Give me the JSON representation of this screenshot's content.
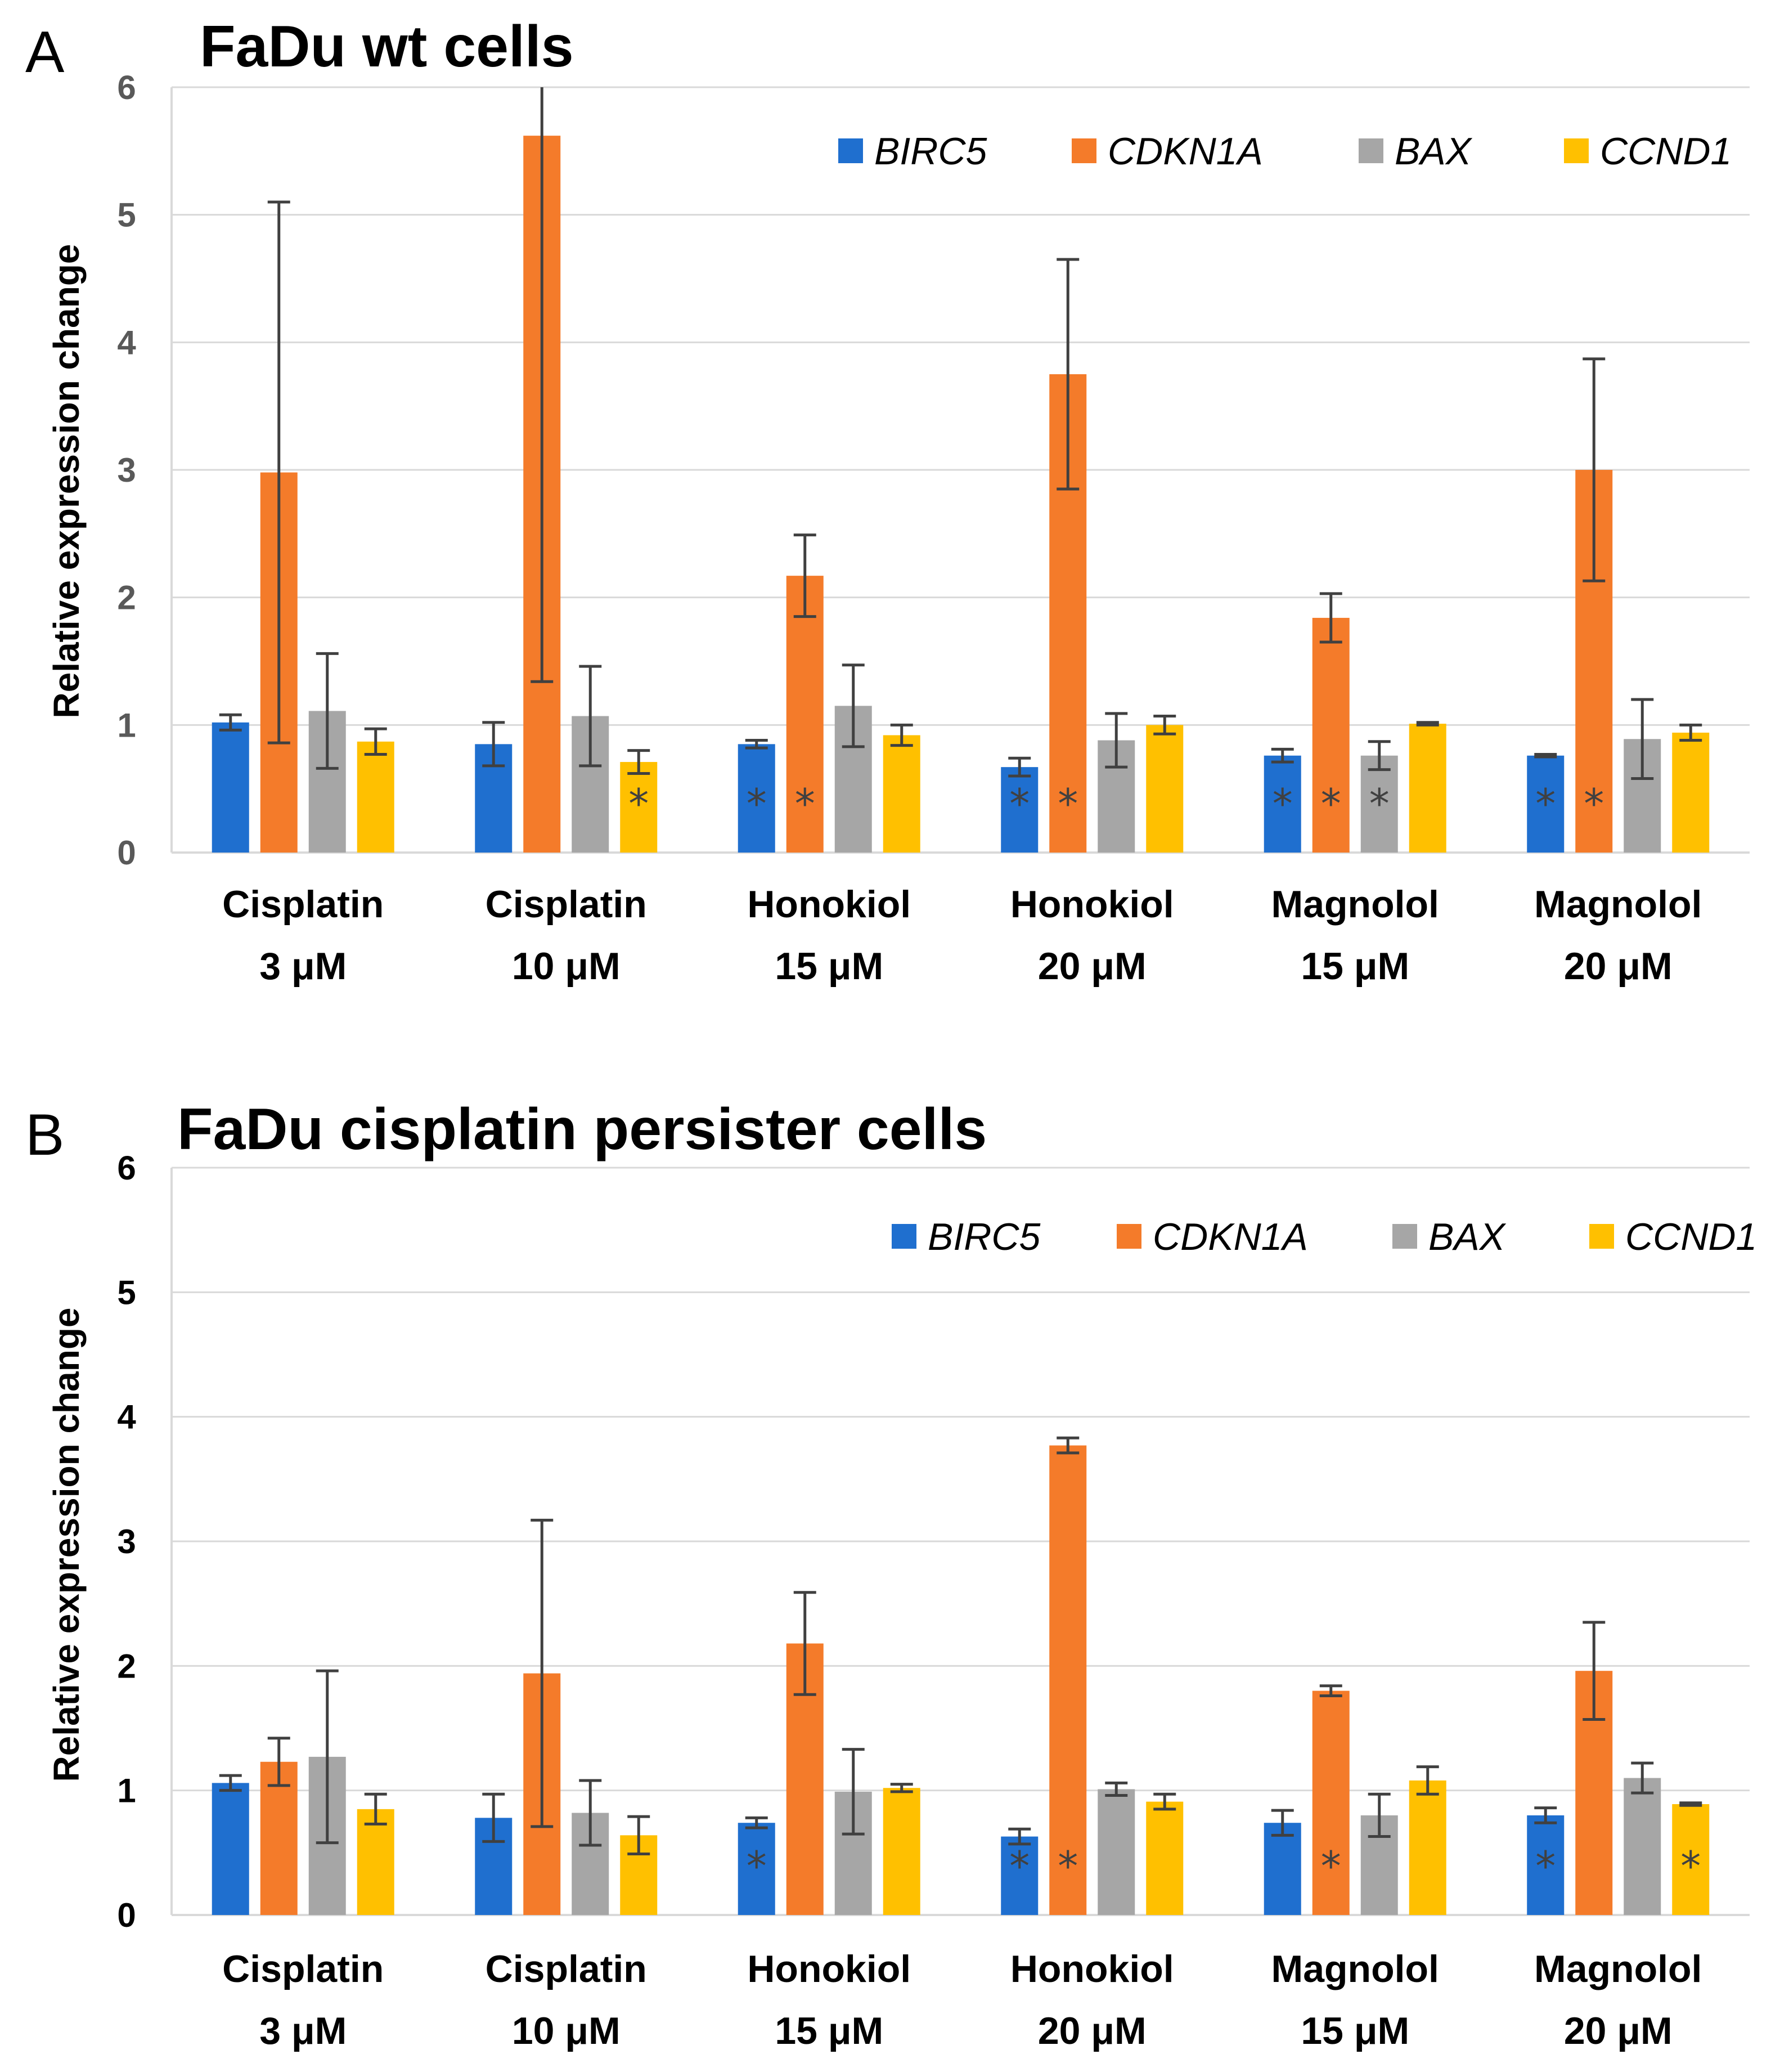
{
  "figure": {
    "colors": {
      "BIRC5": "#1f6fcf",
      "CDKN1A": "#f47b2a",
      "BAX": "#a6a6a6",
      "CCND1": "#ffc000",
      "grid": "#d9d9d9",
      "errorbar": "#404040"
    }
  },
  "chart_data": [
    {
      "panel": "A",
      "type": "bar",
      "title": "FaDu wt cells",
      "ylabel": "Relative expression change",
      "xlabel": "",
      "ylim": [
        0,
        6
      ],
      "yticks": [
        "0",
        "1",
        "2",
        "3",
        "4",
        "5",
        "6"
      ],
      "grid": true,
      "legend_position": "top-right",
      "categories": [
        {
          "line1": "Cisplatin",
          "line2": "3 μM"
        },
        {
          "line1": "Cisplatin",
          "line2": "10 μM"
        },
        {
          "line1": "Honokiol",
          "line2": "15 μM"
        },
        {
          "line1": "Honokiol",
          "line2": "20 μM"
        },
        {
          "line1": "Magnolol",
          "line2": "15 μM"
        },
        {
          "line1": "Magnolol",
          "line2": "20 μM"
        }
      ],
      "series": [
        {
          "name": "BIRC5",
          "values": [
            1.02,
            0.85,
            0.85,
            0.67,
            0.76,
            0.76
          ],
          "errors": [
            0.06,
            0.17,
            0.03,
            0.07,
            0.05,
            0.01
          ],
          "significant": [
            false,
            false,
            true,
            true,
            true,
            true
          ]
        },
        {
          "name": "CDKN1A",
          "values": [
            2.98,
            5.62,
            2.17,
            3.75,
            1.84,
            3.0
          ],
          "errors": [
            2.12,
            4.28,
            0.32,
            0.9,
            0.19,
            0.87
          ],
          "significant": [
            false,
            false,
            true,
            true,
            true,
            true
          ]
        },
        {
          "name": "BAX",
          "values": [
            1.11,
            1.07,
            1.15,
            0.88,
            0.76,
            0.89
          ],
          "errors": [
            0.45,
            0.39,
            0.32,
            0.21,
            0.11,
            0.31
          ],
          "significant": [
            false,
            false,
            false,
            false,
            true,
            false
          ]
        },
        {
          "name": "CCND1",
          "values": [
            0.87,
            0.71,
            0.92,
            1.0,
            1.01,
            0.94
          ],
          "errors": [
            0.1,
            0.09,
            0.08,
            0.07,
            0.01,
            0.06
          ],
          "significant": [
            false,
            true,
            false,
            false,
            false,
            false
          ]
        }
      ],
      "significance_symbol": "*"
    },
    {
      "panel": "B",
      "type": "bar",
      "title": "FaDu cisplatin persister cells",
      "ylabel": "Relative expression change",
      "xlabel": "",
      "ylim": [
        0,
        6
      ],
      "yticks": [
        "0",
        "1",
        "2",
        "3",
        "4",
        "5",
        "6"
      ],
      "grid": true,
      "legend_position": "top-right",
      "categories": [
        {
          "line1": "Cisplatin",
          "line2": "3 μM"
        },
        {
          "line1": "Cisplatin",
          "line2": "10 μM"
        },
        {
          "line1": "Honokiol",
          "line2": "15 μM"
        },
        {
          "line1": "Honokiol",
          "line2": "20 μM"
        },
        {
          "line1": "Magnolol",
          "line2": "15 μM"
        },
        {
          "line1": "Magnolol",
          "line2": "20 μM"
        }
      ],
      "series": [
        {
          "name": "BIRC5",
          "values": [
            1.06,
            0.78,
            0.74,
            0.63,
            0.74,
            0.8
          ],
          "errors": [
            0.06,
            0.19,
            0.04,
            0.06,
            0.1,
            0.06
          ],
          "significant": [
            false,
            false,
            true,
            true,
            false,
            true
          ]
        },
        {
          "name": "CDKN1A",
          "values": [
            1.23,
            1.94,
            2.18,
            3.77,
            1.8,
            1.96
          ],
          "errors": [
            0.19,
            1.23,
            0.41,
            0.06,
            0.04,
            0.39
          ],
          "significant": [
            false,
            false,
            false,
            true,
            true,
            false
          ]
        },
        {
          "name": "BAX",
          "values": [
            1.27,
            0.82,
            0.99,
            1.01,
            0.8,
            1.1
          ],
          "errors": [
            0.69,
            0.26,
            0.34,
            0.05,
            0.17,
            0.12
          ],
          "significant": [
            false,
            false,
            false,
            false,
            false,
            false
          ]
        },
        {
          "name": "CCND1",
          "values": [
            0.85,
            0.64,
            1.02,
            0.91,
            1.08,
            0.89
          ],
          "errors": [
            0.12,
            0.15,
            0.03,
            0.06,
            0.11,
            0.01
          ],
          "significant": [
            false,
            false,
            false,
            false,
            false,
            true
          ]
        }
      ],
      "significance_symbol": "*"
    }
  ]
}
